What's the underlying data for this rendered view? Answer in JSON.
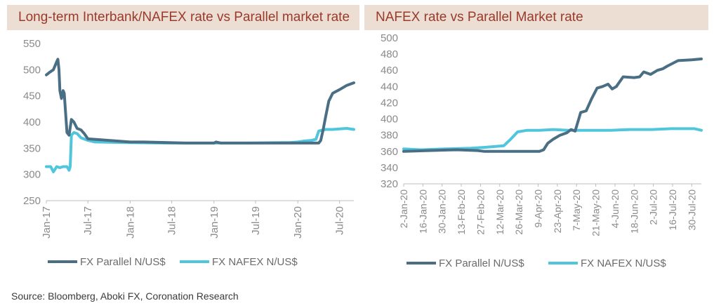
{
  "colors": {
    "parallel": "#4a6f84",
    "nafex": "#4fc6dc",
    "header_bg": "#ecded3",
    "header_text": "#9a3a2b"
  },
  "source": "Source: Bloomberg, Aboki FX, Coronation Research",
  "chart_data": [
    {
      "type": "line",
      "title": "Long-term Interbank/NAFEX rate vs Parallel market rate",
      "xlabel": "",
      "ylabel": "",
      "ylim": [
        250,
        550
      ],
      "yticks": [
        "550",
        "500",
        "450",
        "400",
        "350",
        "300",
        "250"
      ],
      "xlim": [
        "2017-01",
        "2020-09"
      ],
      "xticks": [
        "Jan-17",
        "Jul-17",
        "Jan-18",
        "Jul-18",
        "Jan-19",
        "Jul-19",
        "Jan-20",
        "Jul-20"
      ],
      "legend": "bottom",
      "series": [
        {
          "name": "FX Parallel N/US$",
          "x": [
            "2017-01",
            "2017-01-15",
            "2017-02",
            "2017-02-15",
            "2017-02-20",
            "2017-02-25",
            "2017-03",
            "2017-03-08",
            "2017-03-15",
            "2017-03-20",
            "2017-04",
            "2017-04-10",
            "2017-04-20",
            "2017-05",
            "2017-05-15",
            "2017-06",
            "2017-06-15",
            "2017-07",
            "2017-08",
            "2017-09",
            "2017-10",
            "2017-11",
            "2017-12",
            "2018-01",
            "2018-03",
            "2018-06",
            "2018-09",
            "2018-12",
            "2019-01",
            "2019-01-10",
            "2019-02",
            "2019-06",
            "2019-12",
            "2020-01",
            "2020-02",
            "2020-03",
            "2020-03-20",
            "2020-04",
            "2020-04-10",
            "2020-04-20",
            "2020-05",
            "2020-05-15",
            "2020-06",
            "2020-07",
            "2020-08",
            "2020-09"
          ],
          "y": [
            490,
            495,
            500,
            515,
            520,
            500,
            460,
            445,
            460,
            455,
            380,
            375,
            405,
            400,
            388,
            385,
            378,
            368,
            367,
            366,
            365,
            364,
            363,
            362,
            362,
            361,
            360,
            360,
            360,
            362,
            360,
            360,
            360,
            360,
            360,
            360,
            360,
            360,
            365,
            385,
            410,
            440,
            455,
            462,
            470,
            475
          ]
        },
        {
          "name": "FX NAFEX N/US$",
          "x": [
            "2017-01",
            "2017-01-20",
            "2017-02",
            "2017-02-15",
            "2017-03",
            "2017-03-15",
            "2017-04",
            "2017-04-10",
            "2017-04-15",
            "2017-04-20",
            "2017-05",
            "2017-05-15",
            "2017-06",
            "2017-07",
            "2017-08",
            "2017-12",
            "2018-06",
            "2018-12",
            "2019-06",
            "2019-12",
            "2020-01",
            "2020-02",
            "2020-03",
            "2020-03-20",
            "2020-04",
            "2020-05",
            "2020-06",
            "2020-07",
            "2020-08",
            "2020-09"
          ],
          "y": [
            315,
            315,
            305,
            315,
            313,
            315,
            315,
            308,
            315,
            375,
            380,
            378,
            370,
            365,
            362,
            361,
            360,
            360,
            360,
            361,
            362,
            364,
            365,
            367,
            383,
            386,
            386,
            387,
            388,
            386
          ]
        }
      ]
    },
    {
      "type": "line",
      "title": "NAFEX rate vs Parallel Market rate",
      "xlabel": "",
      "ylabel": "",
      "ylim": [
        320,
        500
      ],
      "yticks": [
        "500",
        "480",
        "460",
        "440",
        "420",
        "400",
        "380",
        "360",
        "340",
        "320"
      ],
      "xlim": [
        "2020-01-02",
        "2020-08-06"
      ],
      "xticks": [
        "2-Jan-20",
        "16-Jan-20",
        "30-Jan-20",
        "13-Feb-20",
        "27-Feb-20",
        "12-Mar-20",
        "26-Mar-20",
        "9-Apr-20",
        "23-Apr-20",
        "7-May-20",
        "21-May-20",
        "4-Jun-20",
        "18-Jun-20",
        "2-Jul-20",
        "16-Jul-20",
        "30-Jul-20"
      ],
      "legend": "bottom",
      "series": [
        {
          "name": "FX Parallel N/US$",
          "x": [
            "2020-01-02",
            "2020-01-20",
            "2020-02-10",
            "2020-02-25",
            "2020-03-01",
            "2020-03-20",
            "2020-04-10",
            "2020-04-13",
            "2020-04-16",
            "2020-04-20",
            "2020-04-25",
            "2020-04-30",
            "2020-05-03",
            "2020-05-06",
            "2020-05-10",
            "2020-05-14",
            "2020-05-18",
            "2020-05-22",
            "2020-05-26",
            "2020-05-30",
            "2020-06-02",
            "2020-06-05",
            "2020-06-10",
            "2020-06-18",
            "2020-06-22",
            "2020-06-25",
            "2020-06-30",
            "2020-07-05",
            "2020-07-09",
            "2020-07-12",
            "2020-07-20",
            "2020-07-30",
            "2020-08-06"
          ],
          "y": [
            360,
            361,
            362,
            361,
            360,
            360,
            360,
            362,
            370,
            375,
            380,
            383,
            387,
            385,
            408,
            410,
            425,
            438,
            440,
            443,
            437,
            440,
            452,
            451,
            452,
            458,
            455,
            460,
            462,
            465,
            472,
            473,
            474
          ]
        },
        {
          "name": "FX NAFEX N/US$",
          "x": [
            "2020-01-02",
            "2020-01-15",
            "2020-02-01",
            "2020-02-20",
            "2020-03-01",
            "2020-03-15",
            "2020-03-20",
            "2020-03-25",
            "2020-04-01",
            "2020-04-10",
            "2020-04-20",
            "2020-05-01",
            "2020-05-15",
            "2020-06-01",
            "2020-06-15",
            "2020-07-01",
            "2020-07-15",
            "2020-08-01",
            "2020-08-06"
          ],
          "y": [
            363,
            362,
            363,
            364,
            365,
            367,
            375,
            384,
            386,
            386,
            387,
            386,
            386,
            386,
            387,
            387,
            388,
            388,
            386
          ]
        }
      ]
    }
  ]
}
